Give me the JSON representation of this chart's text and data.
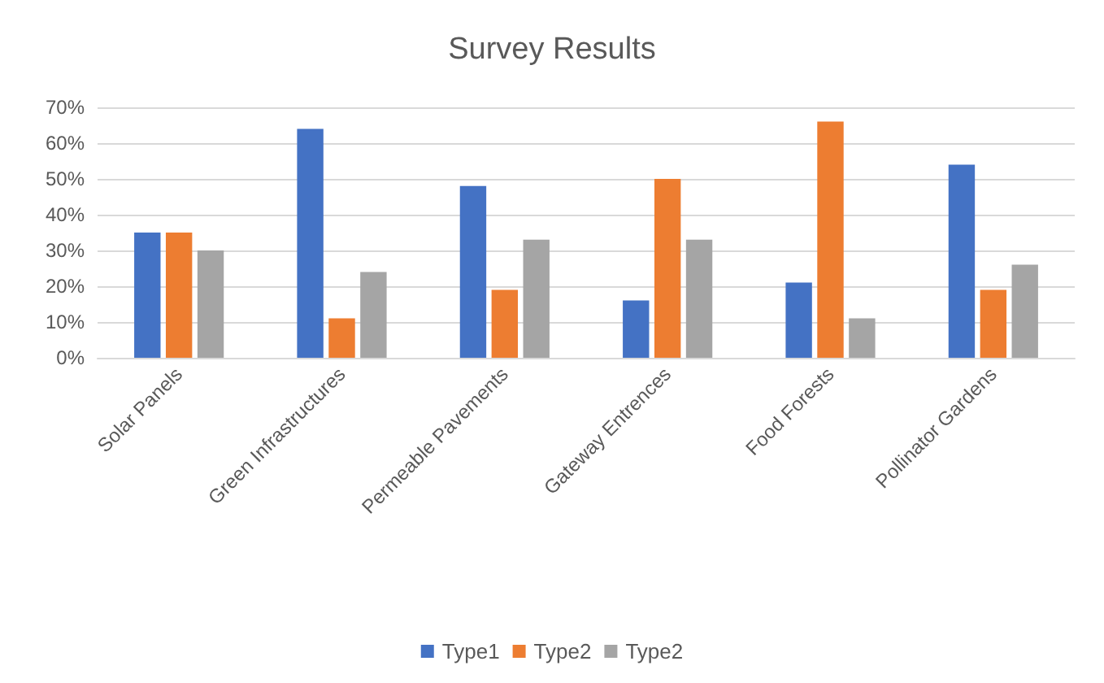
{
  "chart_data": {
    "type": "bar",
    "title": "Survey Results",
    "categories": [
      "Solar Panels",
      "Green Infrastructures",
      "Permeable Pavements",
      "Gateway Entrences",
      "Food Forests",
      "Pollinator Gardens"
    ],
    "series": [
      {
        "name": "Type1",
        "color": "#4472c4",
        "values": [
          35,
          64,
          48,
          16,
          21,
          54
        ]
      },
      {
        "name": "Type2",
        "color": "#ed7d31",
        "values": [
          35,
          11,
          19,
          50,
          66,
          19
        ]
      },
      {
        "name": "Type2",
        "color": "#a5a5a5",
        "values": [
          30,
          24,
          33,
          33,
          11,
          26
        ]
      }
    ],
    "ylim": [
      0,
      70
    ],
    "yticks": [
      {
        "value": 0,
        "label": "0%"
      },
      {
        "value": 10,
        "label": "10%"
      },
      {
        "value": 20,
        "label": "20%"
      },
      {
        "value": 30,
        "label": "30%"
      },
      {
        "value": 40,
        "label": "40%"
      },
      {
        "value": 50,
        "label": "50%"
      },
      {
        "value": 60,
        "label": "60%"
      },
      {
        "value": 70,
        "label": "70%"
      }
    ],
    "grid": true,
    "legend": "bottom"
  }
}
